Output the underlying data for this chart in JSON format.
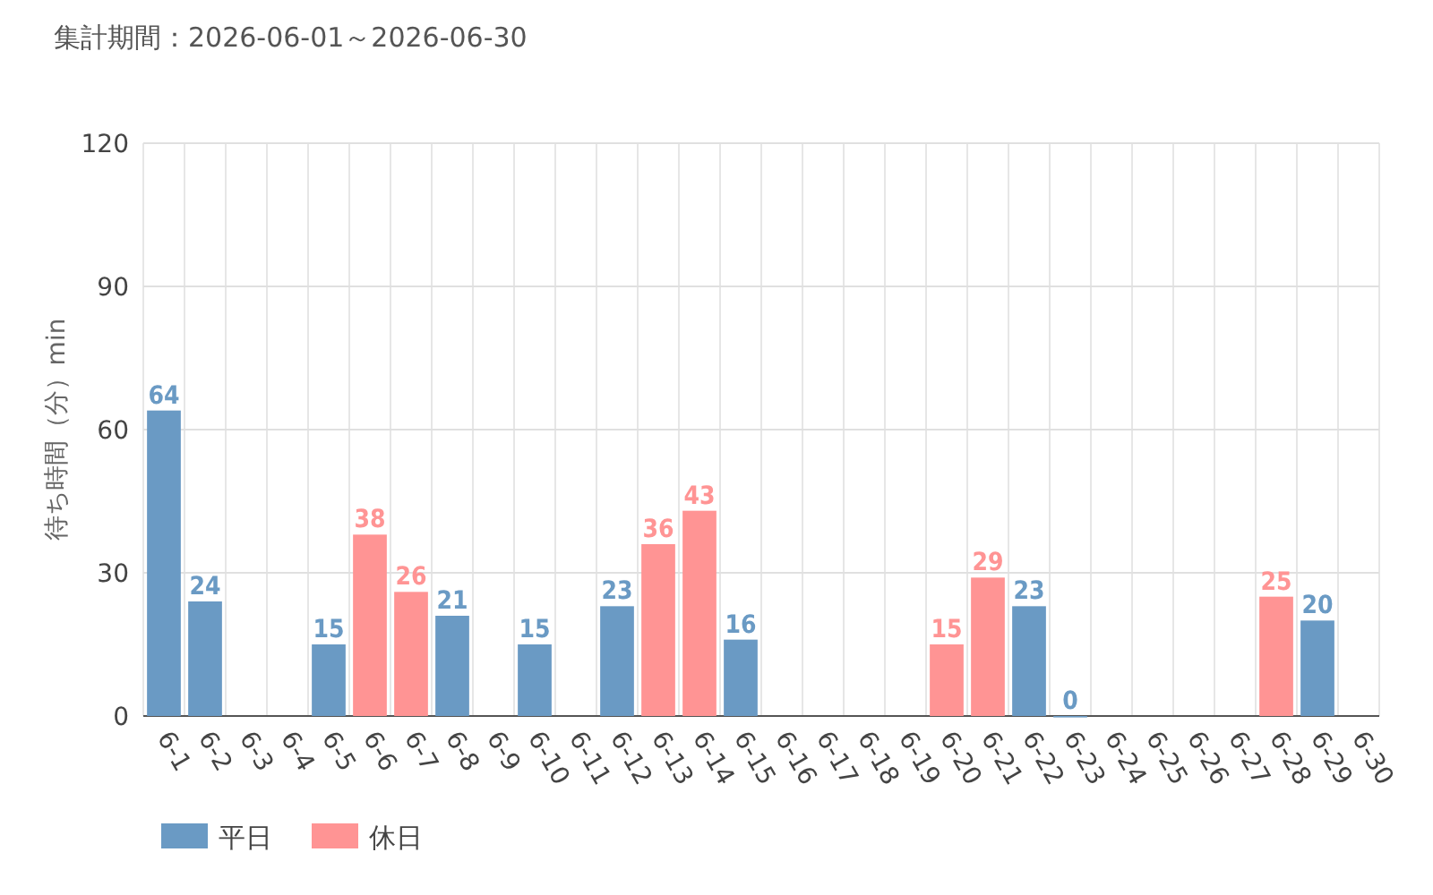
{
  "chart_data": {
    "type": "bar",
    "title": "集計期間：2026-06-01～2026-06-30",
    "ylabel": "待ち時間（分）min",
    "categories": [
      "6-1",
      "6-2",
      "6-3",
      "6-4",
      "6-5",
      "6-6",
      "6-7",
      "6-8",
      "6-9",
      "6-10",
      "6-11",
      "6-12",
      "6-13",
      "6-14",
      "6-15",
      "6-16",
      "6-17",
      "6-18",
      "6-19",
      "6-20",
      "6-21",
      "6-22",
      "6-23",
      "6-24",
      "6-25",
      "6-26",
      "6-27",
      "6-28",
      "6-29",
      "6-30"
    ],
    "series": [
      {
        "name": "平日",
        "color": "#6a9ac4",
        "values": [
          64,
          24,
          null,
          null,
          15,
          null,
          null,
          21,
          null,
          15,
          null,
          23,
          null,
          null,
          16,
          null,
          null,
          null,
          null,
          null,
          null,
          23,
          0,
          null,
          null,
          null,
          null,
          null,
          20,
          null
        ]
      },
      {
        "name": "休日",
        "color": "#ff9494",
        "values": [
          null,
          null,
          null,
          null,
          null,
          38,
          26,
          null,
          null,
          null,
          null,
          null,
          36,
          43,
          null,
          null,
          null,
          null,
          null,
          15,
          29,
          null,
          null,
          null,
          null,
          null,
          null,
          25,
          null,
          null
        ]
      }
    ],
    "ylim": [
      0,
      120
    ],
    "yticks": [
      0,
      30,
      60,
      90,
      120
    ],
    "grid": true,
    "legend": "bottom left",
    "data_labels": true
  }
}
